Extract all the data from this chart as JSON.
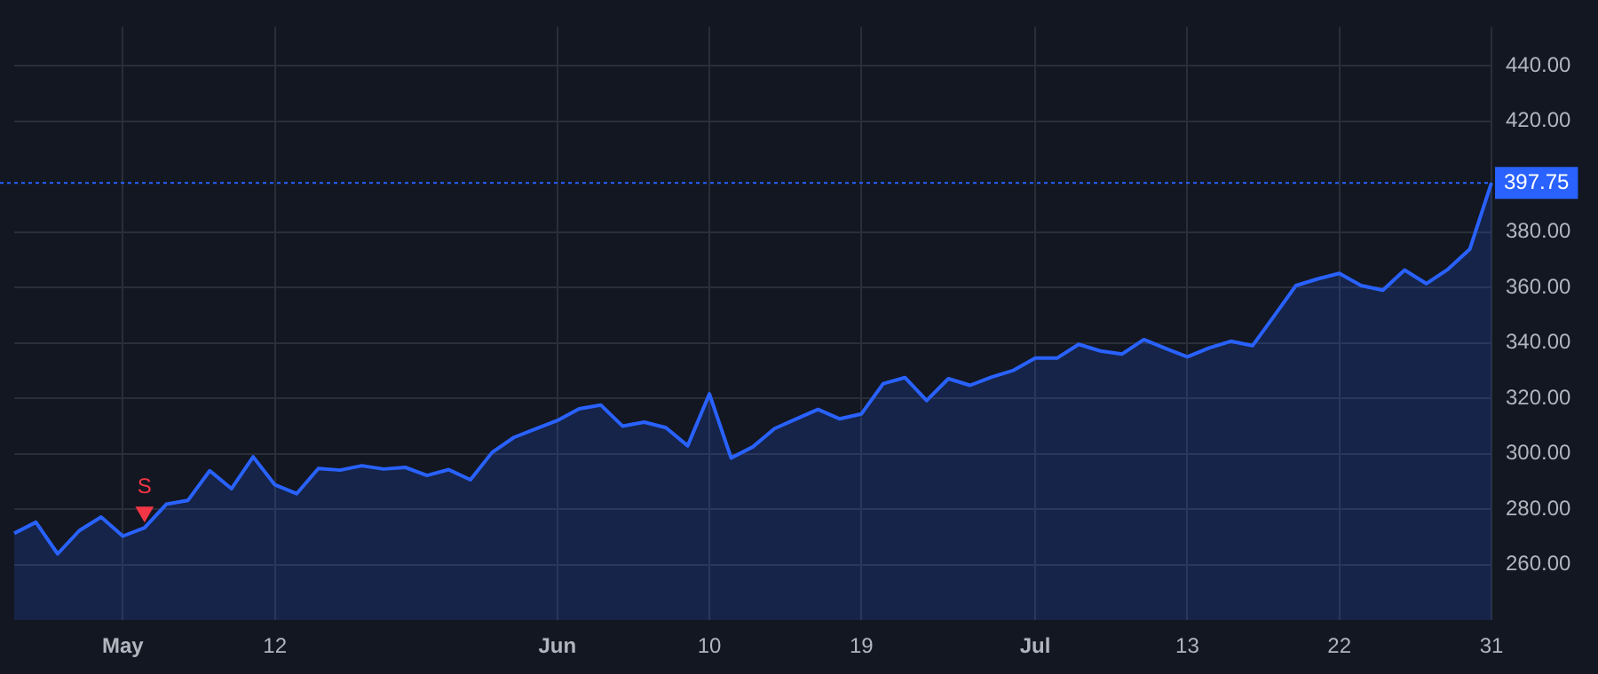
{
  "chart_data": {
    "type": "area",
    "categories": [
      null,
      null,
      null,
      null,
      null,
      "May",
      null,
      null,
      null,
      null,
      null,
      null,
      "12",
      null,
      null,
      null,
      null,
      null,
      null,
      null,
      null,
      null,
      null,
      null,
      null,
      "Jun",
      null,
      null,
      null,
      null,
      null,
      null,
      "10",
      null,
      null,
      null,
      null,
      null,
      null,
      "19",
      null,
      null,
      null,
      null,
      null,
      null,
      null,
      "Jul",
      null,
      null,
      null,
      null,
      null,
      null,
      "13",
      null,
      null,
      null,
      null,
      null,
      null,
      "22",
      null,
      null,
      null,
      null,
      null,
      null,
      "31"
    ],
    "series": [
      {
        "color": "#2962ff",
        "values": [
          271.3,
          275.3,
          263.9,
          272.3,
          277.2,
          270.3,
          273.3,
          281.8,
          283.2,
          293.9,
          287.4,
          298.9,
          288.8,
          285.6,
          294.7,
          294.1,
          295.7,
          294.5,
          295.1,
          292.2,
          294.3,
          290.6,
          300.5,
          305.9,
          309.0,
          312.0,
          316.2,
          317.6,
          310.0,
          311.4,
          309.4,
          302.9,
          321.6,
          298.5,
          302.5,
          309.1,
          312.6,
          316.0,
          312.6,
          314.4,
          325.3,
          327.5,
          319.2,
          327.1,
          324.7,
          327.7,
          330.1,
          334.5,
          334.5,
          339.5,
          337.1,
          336.0,
          341.2,
          338.0,
          335.0,
          338.2,
          340.6,
          339.0,
          349.8,
          360.7,
          363.1,
          365.1,
          360.7,
          359.0,
          366.3,
          361.4,
          366.6,
          373.8,
          397.75
        ]
      },
      {
        "type": "scatter",
        "name": "S",
        "color": "#f23645",
        "marker": "triangle",
        "values": [
          null,
          null,
          null,
          null,
          null,
          null,
          279,
          null,
          null,
          null,
          null,
          null,
          null,
          null,
          null,
          null,
          null,
          null,
          null,
          null,
          null,
          null,
          null,
          null,
          null,
          null,
          null,
          null,
          null,
          null,
          null,
          null,
          null,
          null,
          null,
          null,
          null,
          null,
          null,
          null,
          null,
          null,
          null,
          null,
          null,
          null,
          null,
          null,
          null,
          null,
          null,
          null,
          null,
          null,
          null,
          null,
          null,
          null,
          null,
          null,
          null,
          null,
          null,
          null,
          null,
          null,
          null,
          null,
          null
        ]
      }
    ],
    "ylim": [
      240,
      454
    ],
    "yticks": [
      {
        "value": 260,
        "label": "260.00"
      },
      {
        "value": 280,
        "label": "280.00"
      },
      {
        "value": 300,
        "label": "300.00"
      },
      {
        "value": 320,
        "label": "320.00"
      },
      {
        "value": 340,
        "label": "340.00"
      },
      {
        "value": 360,
        "label": "360.00"
      },
      {
        "value": 380,
        "label": "380.00"
      },
      {
        "value": 420,
        "label": "420.00"
      },
      {
        "value": 440,
        "label": "440.00"
      }
    ],
    "ref_lines": [
      {
        "axis": "y",
        "value": 397.75,
        "label": "397.75",
        "color": "#2962ff",
        "line_style": "dotted"
      }
    ],
    "grid": true,
    "legend": false
  }
}
